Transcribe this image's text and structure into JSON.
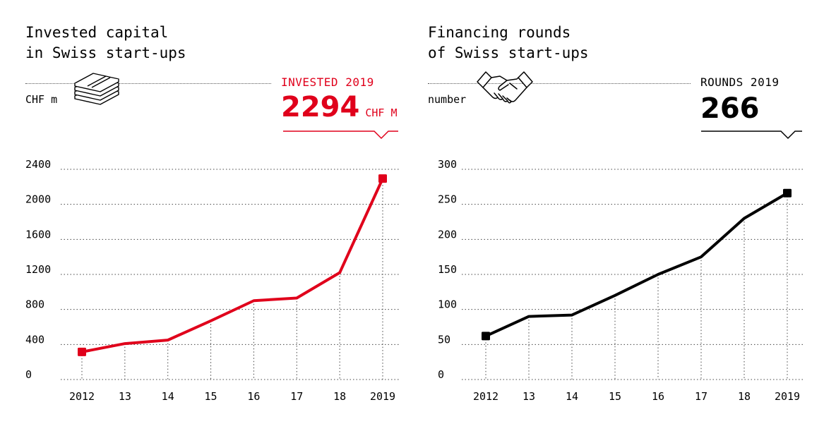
{
  "colors": {
    "invested": "#e0001b",
    "rounds": "#000000",
    "grid": "#444444"
  },
  "left": {
    "title_line1": "Invested capital",
    "title_line2": "in Swiss start-ups",
    "unit": "CHF m",
    "icon": "banknotes-icon",
    "kpi_label": "INVESTED 2019",
    "kpi_value": "2294",
    "kpi_unit": "CHF M"
  },
  "right": {
    "title_line1": "Financing rounds",
    "title_line2": "of Swiss start-ups",
    "unit": "number",
    "icon": "handshake-icon",
    "kpi_label": "ROUNDS 2019",
    "kpi_value": "266"
  },
  "chart_data": [
    {
      "type": "line",
      "title": "Invested capital in Swiss start-ups",
      "ylabel": "CHF m",
      "categories": [
        "2012",
        "13",
        "14",
        "15",
        "16",
        "17",
        "18",
        "2019"
      ],
      "values": [
        315,
        410,
        450,
        670,
        900,
        930,
        1220,
        2294
      ],
      "ylim": [
        0,
        2400
      ],
      "yticks": [
        0,
        400,
        800,
        1200,
        1600,
        2000,
        2400
      ],
      "grid": true,
      "color": "#e0001b",
      "endpoint_markers": true
    },
    {
      "type": "line",
      "title": "Financing rounds of Swiss start-ups",
      "ylabel": "number",
      "categories": [
        "2012",
        "13",
        "14",
        "15",
        "16",
        "17",
        "18",
        "2019"
      ],
      "values": [
        62,
        90,
        92,
        120,
        150,
        175,
        230,
        266
      ],
      "ylim": [
        0,
        300
      ],
      "yticks": [
        0,
        50,
        100,
        150,
        200,
        250,
        300
      ],
      "grid": true,
      "color": "#000000",
      "endpoint_markers": true
    }
  ]
}
